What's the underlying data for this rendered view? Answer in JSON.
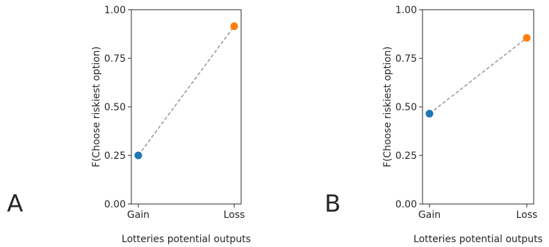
{
  "chart_data": [
    {
      "type": "line",
      "panel_label": "A",
      "categories": [
        "Gain",
        "Loss"
      ],
      "values": [
        0.25,
        0.915
      ],
      "point_colors": [
        "#1f77b4",
        "#ff7f0e"
      ],
      "line_color": "#999999",
      "line_style": "dashed",
      "xlabel": "Lotteries potential outputs",
      "ylabel": "F(Choose riskiest option)",
      "ylim": [
        0,
        1
      ],
      "yticks": [
        "0.00",
        "0.25",
        "0.50",
        "0.75",
        "1.00"
      ],
      "grid": false
    },
    {
      "type": "line",
      "panel_label": "B",
      "categories": [
        "Gain",
        "Loss"
      ],
      "values": [
        0.465,
        0.855
      ],
      "point_colors": [
        "#1f77b4",
        "#ff7f0e"
      ],
      "line_color": "#999999",
      "line_style": "dashed",
      "xlabel": "Lotteries potential outputs",
      "ylabel": "F(Choose riskiest option)",
      "ylim": [
        0,
        1
      ],
      "yticks": [
        "0.00",
        "0.25",
        "0.50",
        "0.75",
        "1.00"
      ],
      "grid": false
    }
  ]
}
